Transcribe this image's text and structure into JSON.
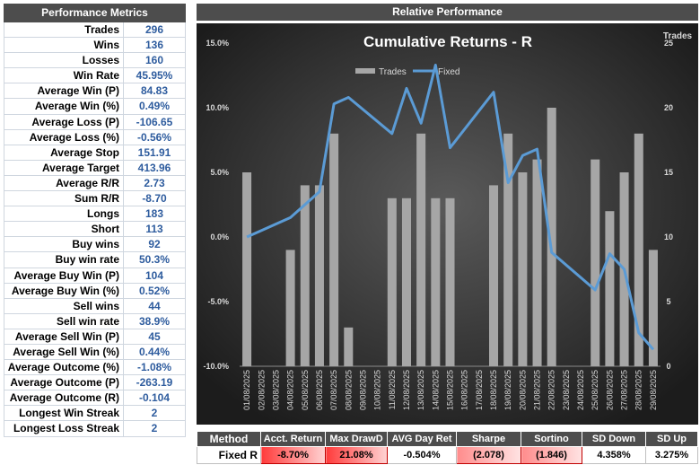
{
  "metrics": {
    "title": "Performance Metrics",
    "rows": [
      {
        "label": "Trades",
        "value": "296"
      },
      {
        "label": "Wins",
        "value": "136"
      },
      {
        "label": "Losses",
        "value": "160"
      },
      {
        "label": "Win Rate",
        "value": "45.95%"
      },
      {
        "label": "Average Win (P)",
        "value": "84.83"
      },
      {
        "label": "Average Win (%)",
        "value": "0.49%"
      },
      {
        "label": "Average Loss (P)",
        "value": "-106.65"
      },
      {
        "label": "Average Loss (%)",
        "value": "-0.56%"
      },
      {
        "label": "Average Stop",
        "value": "151.91"
      },
      {
        "label": "Average Target",
        "value": "413.96"
      },
      {
        "label": "Average R/R",
        "value": "2.73"
      },
      {
        "label": "Sum R/R",
        "value": "-8.70"
      },
      {
        "label": "Longs",
        "value": "183"
      },
      {
        "label": "Short",
        "value": "113"
      },
      {
        "label": "Buy wins",
        "value": "92"
      },
      {
        "label": "Buy win rate",
        "value": "50.3%"
      },
      {
        "label": "Average Buy Win (P)",
        "value": "104"
      },
      {
        "label": "Average Buy Win (%)",
        "value": "0.52%"
      },
      {
        "label": "Sell wins",
        "value": "44"
      },
      {
        "label": "Sell win rate",
        "value": "38.9%"
      },
      {
        "label": "Average Sell Win (P)",
        "value": "45"
      },
      {
        "label": "Average Sell Win (%)",
        "value": "0.44%"
      },
      {
        "label": "Average Outcome (%)",
        "value": "-1.08%"
      },
      {
        "label": "Average Outcome (P)",
        "value": "-263.19"
      },
      {
        "label": "Average Outcome (R)",
        "value": "-0.104"
      },
      {
        "label": "Longest Win Streak",
        "value": "2"
      },
      {
        "label": "Longest Loss Streak",
        "value": "2"
      }
    ]
  },
  "relative": {
    "title": "Relative Performance"
  },
  "chart_data": {
    "type": "bar+line",
    "title": "Cumulative Returns - R",
    "right_axis_title": "Trades",
    "legend": [
      "Trades",
      "Fixed"
    ],
    "legend_position": "top",
    "left_ylim": [
      -0.1,
      0.15
    ],
    "left_ticks": [
      "-10.0%",
      "-5.0%",
      "0.0%",
      "5.0%",
      "10.0%",
      "15.0%"
    ],
    "right_ylim": [
      0,
      25
    ],
    "right_ticks": [
      "0",
      "5",
      "10",
      "15",
      "20",
      "25"
    ],
    "categories": [
      "01/08/2025",
      "02/08/2025",
      "03/08/2025",
      "04/08/2025",
      "05/08/2025",
      "06/08/2025",
      "07/08/2025",
      "08/08/2025",
      "09/08/2025",
      "10/08/2025",
      "11/08/2025",
      "12/08/2025",
      "13/08/2025",
      "14/08/2025",
      "15/08/2025",
      "16/08/2025",
      "17/08/2025",
      "18/08/2025",
      "19/08/2025",
      "20/08/2025",
      "21/08/2025",
      "22/08/2025",
      "23/08/2025",
      "24/08/2025",
      "25/08/2025",
      "26/08/2025",
      "27/08/2025",
      "28/08/2025",
      "29/08/2025"
    ],
    "trades": [
      15,
      0,
      0,
      9,
      14,
      14,
      18,
      3,
      0,
      0,
      13,
      13,
      18,
      13,
      13,
      0,
      0,
      14,
      18,
      15,
      16,
      20,
      0,
      0,
      16,
      12,
      15,
      18,
      9
    ],
    "fixed": [
      0.0,
      null,
      null,
      0.015,
      null,
      0.035,
      0.103,
      0.108,
      null,
      null,
      0.08,
      0.115,
      0.088,
      0.133,
      0.069,
      null,
      null,
      0.112,
      0.042,
      0.063,
      0.068,
      -0.012,
      null,
      null,
      -0.041,
      -0.013,
      -0.025,
      -0.074,
      -0.087
    ],
    "colors": {
      "bars": "#a6a6a6",
      "line": "#5b9bd5",
      "bg_outer": "#1a1a1a",
      "bg_inner": "#555555"
    }
  },
  "stats": {
    "headers": [
      "Method",
      "Acct. Return",
      "Max DrawD",
      "AVG Day Ret",
      "Sharpe",
      "Sortino",
      "SD Down",
      "SD Up"
    ],
    "row": [
      "Fixed R",
      "-8.70%",
      "21.08%",
      "-0.504%",
      "(2.078)",
      "(1.846)",
      "4.358%",
      "3.275%"
    ]
  }
}
